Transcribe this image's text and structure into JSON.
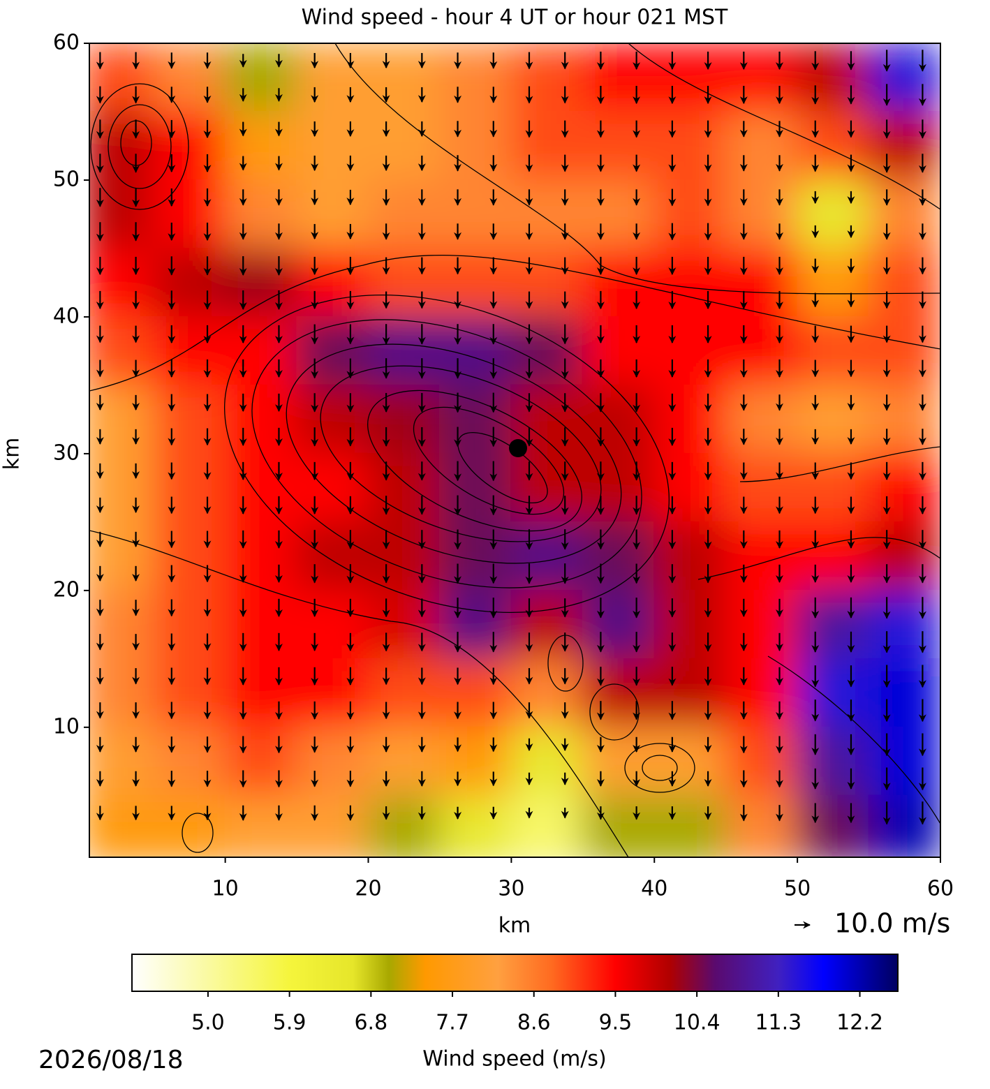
{
  "chart_data": {
    "type": "heatmap",
    "title": "Wind speed - hour 4 UT or hour 021 MST",
    "x_label": "km",
    "y_label": "km",
    "xlim": [
      0.5,
      60
    ],
    "ylim": [
      0.5,
      60
    ],
    "xticks": [
      10,
      20,
      30,
      40,
      50,
      60
    ],
    "yticks": [
      10,
      20,
      30,
      40,
      50,
      60
    ],
    "x": [
      2.5,
      7.5,
      12.5,
      17.5,
      22.5,
      27.5,
      32.5,
      37.5,
      42.5,
      47.5,
      52.5,
      57.5
    ],
    "y": [
      57.5,
      52.5,
      47.5,
      42.5,
      37.5,
      32.5,
      27.5,
      22.5,
      17.5,
      12.5,
      7.5,
      2.5
    ],
    "z": [
      [
        9,
        8.5,
        7,
        8,
        8,
        8.5,
        9,
        9.5,
        9.5,
        9.5,
        10,
        11.5
      ],
      [
        10,
        9.5,
        7.5,
        8,
        8,
        8.5,
        9,
        9,
        9,
        8.5,
        9,
        10
      ],
      [
        10,
        9.5,
        8.5,
        8,
        8.5,
        8.5,
        8.5,
        8.5,
        9,
        8.5,
        6.5,
        8.5
      ],
      [
        9.5,
        10,
        10.2,
        9.5,
        9,
        9,
        9,
        9.5,
        9.5,
        9.5,
        7.5,
        9
      ],
      [
        9,
        9.5,
        9.5,
        10.5,
        10.8,
        10.8,
        10.5,
        9.5,
        9.5,
        9.5,
        9,
        9
      ],
      [
        8,
        9,
        9.5,
        10,
        10.2,
        10.5,
        10,
        10,
        9.5,
        8.5,
        8,
        8.5
      ],
      [
        8,
        9,
        9.5,
        9.5,
        10,
        10.5,
        10,
        10,
        9.5,
        9,
        9,
        9.5
      ],
      [
        8,
        9,
        9.5,
        10,
        10,
        10.5,
        10.8,
        10.5,
        10,
        9.5,
        9.5,
        10
      ],
      [
        8.5,
        9,
        9.5,
        9.5,
        9.8,
        10.8,
        10,
        10.8,
        10,
        9.5,
        11,
        11.5
      ],
      [
        8.5,
        9,
        9.5,
        9.5,
        9,
        9,
        8.5,
        10,
        10,
        9.5,
        11.5,
        12
      ],
      [
        8,
        8.5,
        9,
        8.5,
        8,
        7.5,
        6.5,
        8,
        8,
        9,
        11,
        12
      ],
      [
        7.5,
        7.5,
        8,
        8,
        7,
        6.5,
        5.5,
        7,
        7,
        8.5,
        10.5,
        12.2
      ]
    ],
    "clim": [
      4.16,
      12.62
    ],
    "colorscale": [
      [
        4.16,
        "#ffffff"
      ],
      [
        5.9,
        "#f5f53c"
      ],
      [
        6.6,
        "#e6e62a"
      ],
      [
        7.0,
        "#a8a800"
      ],
      [
        7.4,
        "#ff9900"
      ],
      [
        8.2,
        "#ffa040"
      ],
      [
        8.8,
        "#ff6a20"
      ],
      [
        9.5,
        "#ff0000"
      ],
      [
        10.1,
        "#b00000"
      ],
      [
        10.6,
        "#5a0a6e"
      ],
      [
        11.3,
        "#4020c0"
      ],
      [
        11.8,
        "#0000ff"
      ],
      [
        12.62,
        "#000060"
      ]
    ],
    "colorbar_label": "Wind speed (m/s)",
    "colorbar_ticks": [
      {
        "value": 5,
        "label": "5.0"
      },
      {
        "value": 5.9,
        "label": "5.9"
      },
      {
        "value": 6.8,
        "label": "6.8"
      },
      {
        "value": 7.7,
        "label": "7.7"
      },
      {
        "value": 8.6,
        "label": "8.6"
      },
      {
        "value": 9.5,
        "label": "9.5"
      },
      {
        "value": 10.4,
        "label": "10.4"
      },
      {
        "value": 11.3,
        "label": "11.3"
      },
      {
        "value": 12.2,
        "label": "12.2"
      }
    ],
    "quiver_key": {
      "value": 10,
      "label": "10.0 m/s"
    },
    "date": "2026/08/18"
  }
}
